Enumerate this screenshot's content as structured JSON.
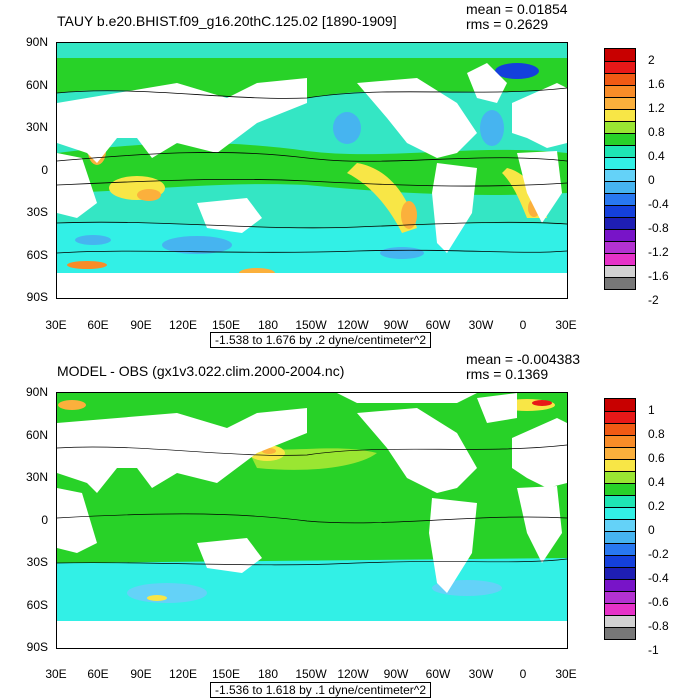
{
  "panels": [
    {
      "title": "TAUY b.e20.BHIST.f09_g16.20thC.125.02 [1890-1909]",
      "mean": "mean = 0.01854",
      "rms": "rms = 0.2629",
      "range_text": "-1.538 to 1.676 by .2 dyne/centimeter^2",
      "lat_labels": [
        "90N",
        "60N",
        "30N",
        "0",
        "30S",
        "60S",
        "90S"
      ],
      "lon_labels": [
        "30E",
        "60E",
        "90E",
        "120E",
        "150E",
        "180",
        "150W",
        "120W",
        "90W",
        "60W",
        "30W",
        "0",
        "30E"
      ],
      "legend_labels": [
        "2",
        "1.6",
        "1.2",
        "0.8",
        "0.4",
        "0",
        "-0.4",
        "-0.8",
        "-1.2",
        "-1.6",
        "-2"
      ],
      "legend_colors": [
        "#c80000",
        "#e81818",
        "#f05a14",
        "#f88c28",
        "#fbb03c",
        "#f8e646",
        "#9ae632",
        "#28d228",
        "#1ee6b4",
        "#32f0e6",
        "#64d2f8",
        "#46b4f0",
        "#2878f0",
        "#1440dc",
        "#1e1eb4",
        "#7814c8",
        "#b432d2",
        "#e632c8",
        "#d2d2d2",
        "#787878"
      ]
    },
    {
      "title": "MODEL - OBS (gx1v3.022.clim.2000-2004.nc)",
      "mean": "mean = -0.004383",
      "rms": "rms = 0.1369",
      "range_text": "-1.536 to 1.618 by .1 dyne/centimeter^2",
      "lat_labels": [
        "90N",
        "60N",
        "30N",
        "0",
        "30S",
        "60S",
        "90S"
      ],
      "lon_labels": [
        "30E",
        "60E",
        "90E",
        "120E",
        "150E",
        "180",
        "150W",
        "120W",
        "90W",
        "60W",
        "30W",
        "0",
        "30E"
      ],
      "legend_labels": [
        "1",
        "0.8",
        "0.6",
        "0.4",
        "0.2",
        "0",
        "-0.2",
        "-0.4",
        "-0.6",
        "-0.8",
        "-1"
      ],
      "legend_colors": [
        "#c80000",
        "#e81818",
        "#f05a14",
        "#f88c28",
        "#fbb03c",
        "#f8e646",
        "#9ae632",
        "#28d228",
        "#1ee6b4",
        "#32f0e6",
        "#64d2f8",
        "#46b4f0",
        "#2878f0",
        "#1440dc",
        "#1e1eb4",
        "#7814c8",
        "#b432d2",
        "#e632c8",
        "#d2d2d2",
        "#787878"
      ]
    }
  ],
  "colors": {
    "land": "#ffffff",
    "ocean_base_top": "#2ee6c8",
    "ocean_base_bottom": "#5ef0d8",
    "frame": "#000000"
  }
}
